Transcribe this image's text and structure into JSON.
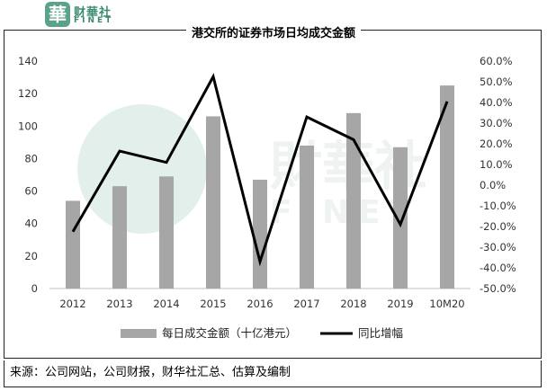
{
  "header": {
    "logo_char": "華",
    "logo_cn": "财華社",
    "logo_en": "FINET"
  },
  "chart_data": {
    "type": "bar+line",
    "title": "港交所的证券市场日均成交金额",
    "categories": [
      "2012",
      "2013",
      "2014",
      "2015",
      "2016",
      "2017",
      "2018",
      "2019",
      "10M20"
    ],
    "series": [
      {
        "name": "每日成交金额（十亿港元）",
        "type": "bar",
        "axis": "left",
        "color": "#a6a6a6",
        "values": [
          54,
          63,
          69,
          106,
          67,
          88,
          108,
          87,
          125
        ]
      },
      {
        "name": "同比增幅",
        "type": "line",
        "axis": "right",
        "color": "#000000",
        "values": [
          -22.5,
          16.5,
          11.0,
          52.5,
          -37.0,
          33.0,
          22.0,
          -19.0,
          40.5
        ]
      }
    ],
    "y_left": {
      "min": 0,
      "max": 140,
      "step": 20,
      "ticks": [
        "0",
        "20",
        "40",
        "60",
        "80",
        "100",
        "120",
        "140"
      ]
    },
    "y_right": {
      "min": -50,
      "max": 60,
      "step": 10,
      "ticks": [
        "-50.0%",
        "-40.0%",
        "-30.0%",
        "-20.0%",
        "-10.0%",
        "0.0%",
        "10.0%",
        "20.0%",
        "30.0%",
        "40.0%",
        "50.0%",
        "60.0%"
      ]
    },
    "grid": false,
    "legend_position": "bottom"
  },
  "watermark": {
    "cn": "財華社",
    "en": "FINET"
  },
  "source": "来源：公司网站，公司财报，财华社汇总、估算及编制"
}
